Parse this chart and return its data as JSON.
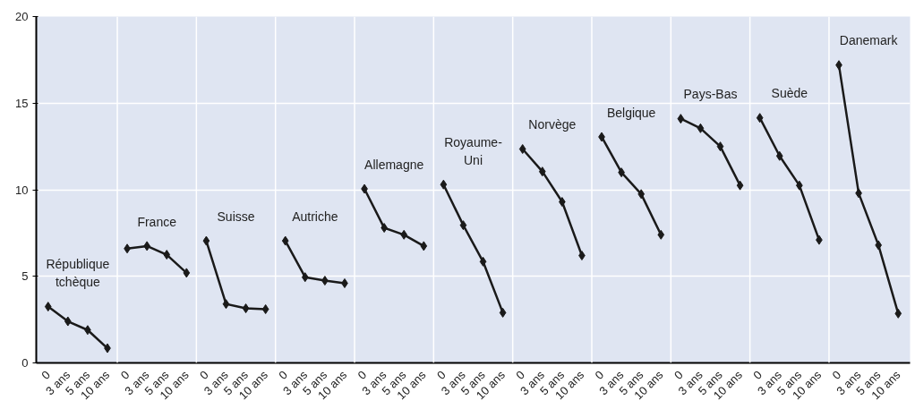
{
  "chart_data": {
    "type": "line",
    "categories": [
      "0",
      "3 ans",
      "5 ans",
      "10 ans",
      "0",
      "3 ans",
      "5 ans",
      "10 ans",
      "0",
      "3 ans",
      "5 ans",
      "10 ans",
      "0",
      "3 ans",
      "5 ans",
      "10 ans",
      "0",
      "3 ans",
      "5 ans",
      "10 ans",
      "0",
      "3 ans",
      "5 ans",
      "10 ans",
      "0",
      "3 ans",
      "5 ans",
      "10 ans",
      "0",
      "3 ans",
      "5 ans",
      "10 ans",
      "0",
      "3 ans",
      "5 ans",
      "10 ans",
      "0",
      "3 ans",
      "5 ans",
      "10 ans",
      "0",
      "3 ans",
      "5 ans",
      "10 ans"
    ],
    "series": [
      {
        "name": "République tchèque",
        "color": "#1a1a1a",
        "values": [
          3.25,
          2.4,
          1.9,
          0.85,
          null,
          null,
          null,
          null,
          null,
          null,
          null,
          null,
          null,
          null,
          null,
          null,
          null,
          null,
          null,
          null,
          null,
          null,
          null,
          null,
          null,
          null,
          null,
          null,
          null,
          null,
          null,
          null,
          null,
          null,
          null,
          null,
          null,
          null,
          null,
          null,
          null,
          null,
          null,
          null
        ]
      },
      {
        "name": "France",
        "color": "#1a1a1a",
        "values": [
          null,
          null,
          null,
          null,
          6.6,
          6.75,
          6.25,
          5.2,
          null,
          null,
          null,
          null,
          null,
          null,
          null,
          null,
          null,
          null,
          null,
          null,
          null,
          null,
          null,
          null,
          null,
          null,
          null,
          null,
          null,
          null,
          null,
          null,
          null,
          null,
          null,
          null,
          null,
          null,
          null,
          null,
          null,
          null,
          null,
          null
        ]
      },
      {
        "name": "Suisse",
        "color": "#1a1a1a",
        "values": [
          null,
          null,
          null,
          null,
          null,
          null,
          null,
          null,
          7.05,
          3.4,
          3.15,
          3.1,
          null,
          null,
          null,
          null,
          null,
          null,
          null,
          null,
          null,
          null,
          null,
          null,
          null,
          null,
          null,
          null,
          null,
          null,
          null,
          null,
          null,
          null,
          null,
          null,
          null,
          null,
          null,
          null,
          null,
          null,
          null,
          null
        ]
      },
      {
        "name": "Autriche",
        "color": "#1a1a1a",
        "values": [
          null,
          null,
          null,
          null,
          null,
          null,
          null,
          null,
          null,
          null,
          null,
          null,
          7.05,
          4.95,
          4.75,
          4.6,
          null,
          null,
          null,
          null,
          null,
          null,
          null,
          null,
          null,
          null,
          null,
          null,
          null,
          null,
          null,
          null,
          null,
          null,
          null,
          null,
          null,
          null,
          null,
          null,
          null,
          null,
          null,
          null
        ]
      },
      {
        "name": "Allemagne",
        "color": "#1a1a1a",
        "values": [
          null,
          null,
          null,
          null,
          null,
          null,
          null,
          null,
          null,
          null,
          null,
          null,
          null,
          null,
          null,
          null,
          10.05,
          7.8,
          7.4,
          6.75,
          null,
          null,
          null,
          null,
          null,
          null,
          null,
          null,
          null,
          null,
          null,
          null,
          null,
          null,
          null,
          null,
          null,
          null,
          null,
          null,
          null,
          null,
          null,
          null
        ]
      },
      {
        "name": "Royaume-Uni",
        "color": "#1a1a1a",
        "values": [
          null,
          null,
          null,
          null,
          null,
          null,
          null,
          null,
          null,
          null,
          null,
          null,
          null,
          null,
          null,
          null,
          null,
          null,
          null,
          null,
          10.3,
          7.95,
          5.85,
          2.9,
          null,
          null,
          null,
          null,
          null,
          null,
          null,
          null,
          null,
          null,
          null,
          null,
          null,
          null,
          null,
          null,
          null,
          null,
          null,
          null
        ]
      },
      {
        "name": "Norvège",
        "color": "#1a1a1a",
        "values": [
          null,
          null,
          null,
          null,
          null,
          null,
          null,
          null,
          null,
          null,
          null,
          null,
          null,
          null,
          null,
          null,
          null,
          null,
          null,
          null,
          null,
          null,
          null,
          null,
          12.35,
          11.05,
          9.3,
          6.2,
          null,
          null,
          null,
          null,
          null,
          null,
          null,
          null,
          null,
          null,
          null,
          null,
          null,
          null,
          null,
          null
        ]
      },
      {
        "name": "Belgique",
        "color": "#1a1a1a",
        "values": [
          null,
          null,
          null,
          null,
          null,
          null,
          null,
          null,
          null,
          null,
          null,
          null,
          null,
          null,
          null,
          null,
          null,
          null,
          null,
          null,
          null,
          null,
          null,
          null,
          null,
          null,
          null,
          null,
          13.05,
          11.0,
          9.75,
          7.4,
          null,
          null,
          null,
          null,
          null,
          null,
          null,
          null,
          null,
          null,
          null,
          null
        ]
      },
      {
        "name": "Pays-Bas",
        "color": "#1a1a1a",
        "values": [
          null,
          null,
          null,
          null,
          null,
          null,
          null,
          null,
          null,
          null,
          null,
          null,
          null,
          null,
          null,
          null,
          null,
          null,
          null,
          null,
          null,
          null,
          null,
          null,
          null,
          null,
          null,
          null,
          null,
          null,
          null,
          null,
          14.1,
          13.55,
          12.5,
          10.25,
          null,
          null,
          null,
          null,
          null,
          null,
          null,
          null
        ]
      },
      {
        "name": "Suède",
        "color": "#1a1a1a",
        "values": [
          null,
          null,
          null,
          null,
          null,
          null,
          null,
          null,
          null,
          null,
          null,
          null,
          null,
          null,
          null,
          null,
          null,
          null,
          null,
          null,
          null,
          null,
          null,
          null,
          null,
          null,
          null,
          null,
          null,
          null,
          null,
          null,
          null,
          null,
          null,
          null,
          14.15,
          11.95,
          10.25,
          7.1,
          null,
          null,
          null,
          null
        ]
      },
      {
        "name": "Danemark",
        "color": "#1a1a1a",
        "values": [
          null,
          null,
          null,
          null,
          null,
          null,
          null,
          null,
          null,
          null,
          null,
          null,
          null,
          null,
          null,
          null,
          null,
          null,
          null,
          null,
          null,
          null,
          null,
          null,
          null,
          null,
          null,
          null,
          null,
          null,
          null,
          null,
          null,
          null,
          null,
          null,
          null,
          null,
          null,
          null,
          17.2,
          9.8,
          6.8,
          2.85
        ]
      }
    ],
    "ylim": [
      0,
      20
    ],
    "yticks": [
      0,
      5,
      10,
      15,
      20
    ],
    "grid": true,
    "marker": "diamond",
    "line_style": "solid"
  }
}
